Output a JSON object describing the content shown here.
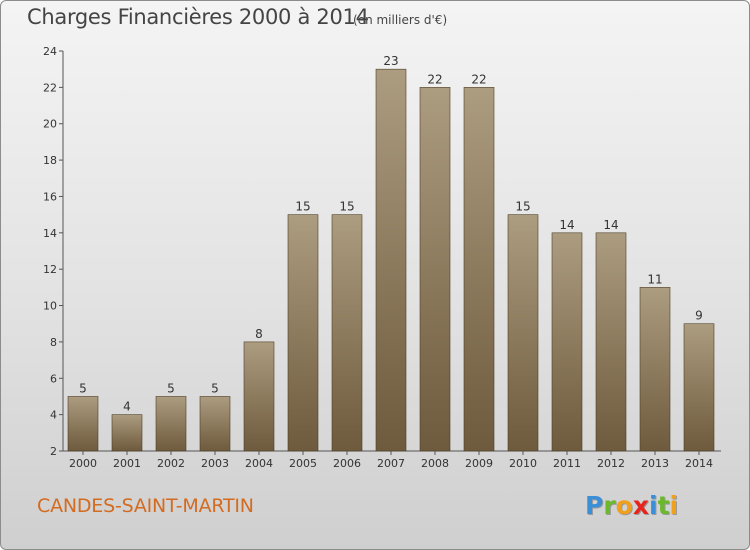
{
  "chart_data": {
    "type": "bar",
    "title": "Charges Financières 2000 à 2014",
    "subtitle": "(en milliers d'€)",
    "categories": [
      "2000",
      "2001",
      "2002",
      "2003",
      "2004",
      "2005",
      "2006",
      "2007",
      "2008",
      "2009",
      "2010",
      "2011",
      "2012",
      "2013",
      "2014"
    ],
    "values": [
      5,
      4,
      5,
      5,
      8,
      15,
      15,
      23,
      22,
      22,
      15,
      14,
      14,
      11,
      9
    ],
    "ylim": [
      2,
      24
    ],
    "yticks": [
      2,
      4,
      6,
      8,
      10,
      12,
      14,
      16,
      18,
      20,
      22,
      24
    ],
    "grid": false,
    "bar_color_top": "#ac9c80",
    "bar_color_bottom": "#6e5a3c"
  },
  "footer": {
    "commune": "CANDES-SAINT-MARTIN",
    "logo_letters": [
      {
        "ch": "P",
        "color": "#3a8fd8"
      },
      {
        "ch": "r",
        "color": "#6bb82c"
      },
      {
        "ch": "o",
        "color": "#f0a01c"
      },
      {
        "ch": "x",
        "color": "#e8231e"
      },
      {
        "ch": "i",
        "color": "#3a8fd8"
      },
      {
        "ch": "t",
        "color": "#6bb82c"
      },
      {
        "ch": "i",
        "color": "#f0a01c"
      }
    ]
  }
}
